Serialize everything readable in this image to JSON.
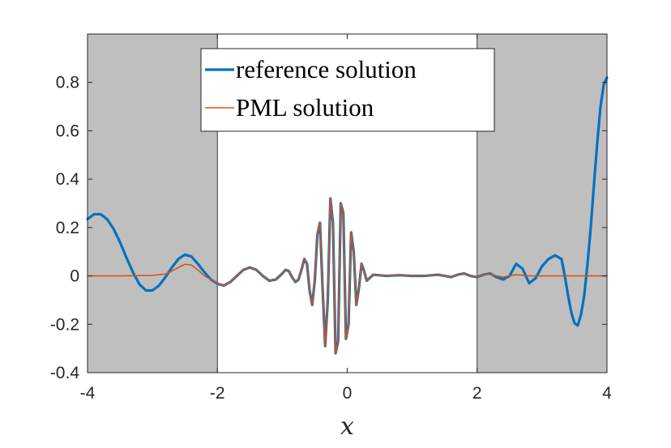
{
  "chart_data": {
    "type": "line",
    "xlabel": "x",
    "ylabel": "",
    "xlim": [
      -4,
      4
    ],
    "ylim": [
      -0.4,
      1.0
    ],
    "xticks": [
      {
        "value": -4,
        "label": "-4"
      },
      {
        "value": -2,
        "label": "-2"
      },
      {
        "value": 0,
        "label": "0"
      },
      {
        "value": 2,
        "label": "2"
      },
      {
        "value": 4,
        "label": "4"
      }
    ],
    "yticks": [
      {
        "value": -0.4,
        "label": "-0.4"
      },
      {
        "value": -0.2,
        "label": "-0.2"
      },
      {
        "value": 0,
        "label": "0"
      },
      {
        "value": 0.2,
        "label": "0.2"
      },
      {
        "value": 0.4,
        "label": "0.4"
      },
      {
        "value": 0.6,
        "label": "0.6"
      },
      {
        "value": 0.8,
        "label": "0.8"
      }
    ],
    "shaded_regions": [
      {
        "x": [
          -4,
          -2
        ],
        "color": "#bfbfbf"
      },
      {
        "x": [
          2,
          4
        ],
        "color": "#bfbfbf"
      }
    ],
    "legend": {
      "position": "top-center"
    },
    "grid": false,
    "series": [
      {
        "name": "reference solution",
        "color": "#0072bd",
        "points": [
          [
            -4.0,
            0.235
          ],
          [
            -3.9,
            0.255
          ],
          [
            -3.8,
            0.255
          ],
          [
            -3.7,
            0.235
          ],
          [
            -3.6,
            0.195
          ],
          [
            -3.5,
            0.14
          ],
          [
            -3.4,
            0.075
          ],
          [
            -3.3,
            0.015
          ],
          [
            -3.2,
            -0.035
          ],
          [
            -3.1,
            -0.06
          ],
          [
            -3.0,
            -0.06
          ],
          [
            -2.9,
            -0.04
          ],
          [
            -2.8,
            -0.005
          ],
          [
            -2.7,
            0.035
          ],
          [
            -2.6,
            0.07
          ],
          [
            -2.5,
            0.088
          ],
          [
            -2.4,
            0.08
          ],
          [
            -2.3,
            0.05
          ],
          [
            -2.2,
            0.015
          ],
          [
            -2.1,
            -0.015
          ],
          [
            -2.0,
            -0.032
          ],
          [
            -1.9,
            -0.04
          ],
          [
            -1.8,
            -0.025
          ],
          [
            -1.7,
            0.0
          ],
          [
            -1.6,
            0.025
          ],
          [
            -1.5,
            0.035
          ],
          [
            -1.4,
            0.025
          ],
          [
            -1.3,
            0.0
          ],
          [
            -1.2,
            -0.02
          ],
          [
            -1.1,
            -0.015
          ],
          [
            -1.0,
            0.01
          ],
          [
            -0.95,
            0.025
          ],
          [
            -0.9,
            0.02
          ],
          [
            -0.85,
            -0.005
          ],
          [
            -0.8,
            -0.025
          ],
          [
            -0.75,
            -0.015
          ],
          [
            -0.7,
            0.03
          ],
          [
            -0.66,
            0.07
          ],
          [
            -0.62,
            0.05
          ],
          [
            -0.58,
            -0.06
          ],
          [
            -0.54,
            -0.12
          ],
          [
            -0.5,
            -0.02
          ],
          [
            -0.46,
            0.17
          ],
          [
            -0.42,
            0.22
          ],
          [
            -0.38,
            -0.05
          ],
          [
            -0.34,
            -0.29
          ],
          [
            -0.3,
            -0.1
          ],
          [
            -0.26,
            0.32
          ],
          [
            -0.22,
            0.22
          ],
          [
            -0.18,
            -0.32
          ],
          [
            -0.14,
            -0.27
          ],
          [
            -0.1,
            0.3
          ],
          [
            -0.06,
            0.26
          ],
          [
            -0.02,
            -0.26
          ],
          [
            0.02,
            -0.2
          ],
          [
            0.06,
            0.18
          ],
          [
            0.1,
            0.1
          ],
          [
            0.14,
            -0.12
          ],
          [
            0.18,
            -0.05
          ],
          [
            0.22,
            0.05
          ],
          [
            0.26,
            0.02
          ],
          [
            0.3,
            -0.02
          ],
          [
            0.4,
            0.005
          ],
          [
            0.6,
            0.0
          ],
          [
            0.8,
            0.003
          ],
          [
            1.0,
            0.0
          ],
          [
            1.2,
            0.0
          ],
          [
            1.4,
            0.005
          ],
          [
            1.5,
            0.0
          ],
          [
            1.6,
            -0.005
          ],
          [
            1.7,
            0.005
          ],
          [
            1.8,
            0.01
          ],
          [
            1.9,
            0.0
          ],
          [
            2.0,
            -0.005
          ],
          [
            2.1,
            0.005
          ],
          [
            2.2,
            0.01
          ],
          [
            2.3,
            -0.005
          ],
          [
            2.4,
            -0.015
          ],
          [
            2.5,
            0.0
          ],
          [
            2.6,
            0.05
          ],
          [
            2.7,
            0.03
          ],
          [
            2.8,
            -0.03
          ],
          [
            2.9,
            -0.01
          ],
          [
            3.0,
            0.04
          ],
          [
            3.1,
            0.07
          ],
          [
            3.2,
            0.085
          ],
          [
            3.3,
            0.07
          ],
          [
            3.35,
            0.0
          ],
          [
            3.4,
            -0.08
          ],
          [
            3.45,
            -0.15
          ],
          [
            3.5,
            -0.195
          ],
          [
            3.55,
            -0.205
          ],
          [
            3.6,
            -0.16
          ],
          [
            3.65,
            -0.08
          ],
          [
            3.7,
            0.05
          ],
          [
            3.75,
            0.2
          ],
          [
            3.8,
            0.38
          ],
          [
            3.85,
            0.55
          ],
          [
            3.9,
            0.7
          ],
          [
            3.95,
            0.79
          ],
          [
            4.0,
            0.82
          ]
        ]
      },
      {
        "name": "PML solution",
        "color": "#d95319",
        "points": [
          [
            -4.0,
            0.0
          ],
          [
            -3.5,
            0.0
          ],
          [
            -3.0,
            0.002
          ],
          [
            -2.8,
            0.008
          ],
          [
            -2.7,
            0.02
          ],
          [
            -2.6,
            0.035
          ],
          [
            -2.5,
            0.048
          ],
          [
            -2.4,
            0.045
          ],
          [
            -2.3,
            0.025
          ],
          [
            -2.2,
            0.0
          ],
          [
            -2.1,
            -0.015
          ],
          [
            -2.0,
            -0.03
          ],
          [
            -1.9,
            -0.04
          ],
          [
            -1.8,
            -0.025
          ],
          [
            -1.7,
            0.0
          ],
          [
            -1.6,
            0.025
          ],
          [
            -1.5,
            0.035
          ],
          [
            -1.4,
            0.025
          ],
          [
            -1.3,
            0.0
          ],
          [
            -1.2,
            -0.02
          ],
          [
            -1.1,
            -0.015
          ],
          [
            -1.0,
            0.01
          ],
          [
            -0.95,
            0.025
          ],
          [
            -0.9,
            0.02
          ],
          [
            -0.85,
            -0.005
          ],
          [
            -0.8,
            -0.025
          ],
          [
            -0.75,
            -0.015
          ],
          [
            -0.7,
            0.03
          ],
          [
            -0.66,
            0.07
          ],
          [
            -0.62,
            0.05
          ],
          [
            -0.58,
            -0.06
          ],
          [
            -0.54,
            -0.12
          ],
          [
            -0.5,
            -0.02
          ],
          [
            -0.46,
            0.17
          ],
          [
            -0.42,
            0.22
          ],
          [
            -0.38,
            -0.05
          ],
          [
            -0.34,
            -0.29
          ],
          [
            -0.3,
            -0.1
          ],
          [
            -0.26,
            0.32
          ],
          [
            -0.22,
            0.22
          ],
          [
            -0.18,
            -0.32
          ],
          [
            -0.14,
            -0.27
          ],
          [
            -0.1,
            0.3
          ],
          [
            -0.06,
            0.26
          ],
          [
            -0.02,
            -0.26
          ],
          [
            0.02,
            -0.2
          ],
          [
            0.06,
            0.18
          ],
          [
            0.1,
            0.1
          ],
          [
            0.14,
            -0.12
          ],
          [
            0.18,
            -0.05
          ],
          [
            0.22,
            0.05
          ],
          [
            0.26,
            0.02
          ],
          [
            0.3,
            -0.02
          ],
          [
            0.4,
            0.005
          ],
          [
            0.6,
            0.0
          ],
          [
            0.8,
            0.003
          ],
          [
            1.0,
            0.0
          ],
          [
            1.2,
            0.0
          ],
          [
            1.4,
            0.005
          ],
          [
            1.5,
            0.0
          ],
          [
            1.6,
            -0.005
          ],
          [
            1.7,
            0.005
          ],
          [
            1.8,
            0.01
          ],
          [
            1.9,
            0.0
          ],
          [
            2.0,
            -0.005
          ],
          [
            2.1,
            0.005
          ],
          [
            2.2,
            0.008
          ],
          [
            2.3,
            0.0
          ],
          [
            2.4,
            -0.005
          ],
          [
            2.6,
            0.005
          ],
          [
            2.8,
            0.0
          ],
          [
            3.0,
            0.0
          ],
          [
            3.5,
            0.0
          ],
          [
            4.0,
            0.0
          ]
        ]
      }
    ]
  }
}
